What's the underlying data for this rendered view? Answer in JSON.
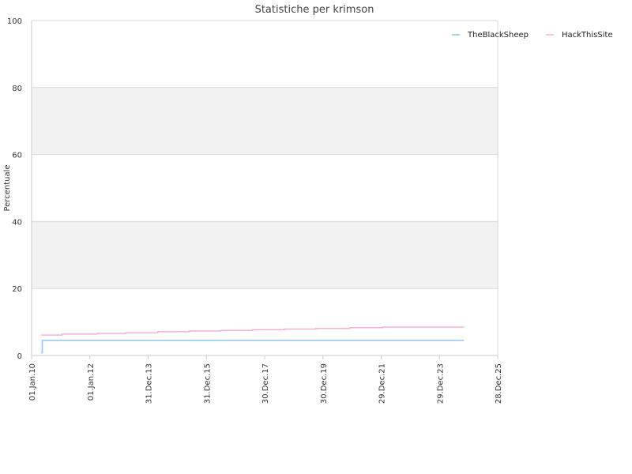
{
  "chart_data": {
    "type": "line",
    "title": "Statistiche per krimson",
    "xlabel": "",
    "ylabel": "Percentuale",
    "ylim": [
      0,
      100
    ],
    "yticks": [
      0,
      20,
      40,
      60,
      80,
      100
    ],
    "x_ticks": [
      "01.Jan.10",
      "01.Jan.12",
      "31.Dec.13",
      "31.Dec.15",
      "30.Dec.17",
      "30.Dec.19",
      "29.Dec.21",
      "29.Dec.23",
      "28.Dec.25"
    ],
    "xlim": [
      "2010-01-01",
      "2025-12-28"
    ],
    "grid": true,
    "alternating_bands": true,
    "legend_position": "top-right",
    "series": [
      {
        "name": "TheBlackSheep",
        "color": "#90c4f0",
        "step": true,
        "points": [
          [
            "2010-05-01",
            0.8
          ],
          [
            "2010-05-15",
            4.5
          ],
          [
            "2024-11-01",
            4.5
          ]
        ]
      },
      {
        "name": "HackThisSite",
        "color": "#f4b0d8",
        "step": true,
        "points": [
          [
            "2010-05-01",
            6.1
          ],
          [
            "2011-01-15",
            6.4
          ],
          [
            "2012-04-01",
            6.6
          ],
          [
            "2013-04-01",
            6.8
          ],
          [
            "2014-05-01",
            7.1
          ],
          [
            "2015-06-01",
            7.3
          ],
          [
            "2016-07-01",
            7.5
          ],
          [
            "2017-08-01",
            7.7
          ],
          [
            "2018-09-01",
            7.9
          ],
          [
            "2019-10-01",
            8.1
          ],
          [
            "2020-12-01",
            8.3
          ],
          [
            "2022-01-15",
            8.5
          ],
          [
            "2024-11-01",
            8.5
          ]
        ]
      }
    ]
  }
}
